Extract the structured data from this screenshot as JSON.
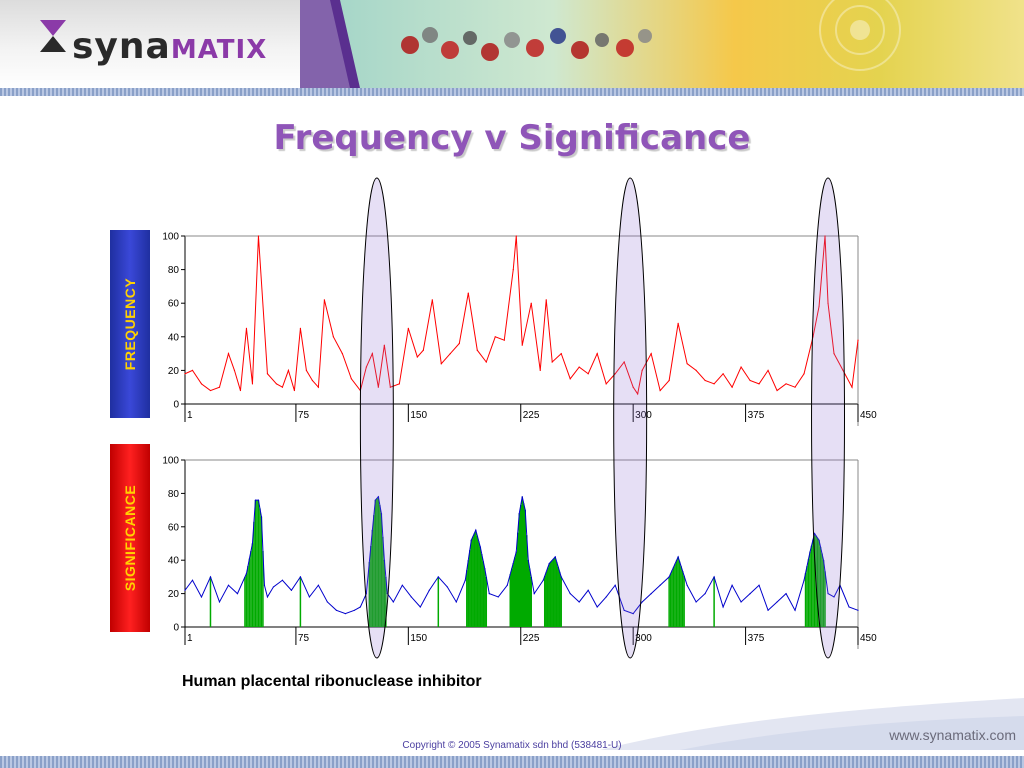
{
  "brand": {
    "logo_prefix": "syna",
    "logo_suffix": "MATIX"
  },
  "slide": {
    "title": "Frequency v Significance"
  },
  "labels": {
    "frequency": "FREQUENCY",
    "significance": "SIGNIFICANCE"
  },
  "caption": "Human placental ribonuclease inhibitor",
  "footer": {
    "copyright": "Copyright © 2005 Synamatix sdn bhd (538481-U)",
    "url": "www.synamatix.com"
  },
  "colors": {
    "freq_line": "#ff0000",
    "sig_line": "#0000cc",
    "sig_fill": "#00aa00",
    "highlight": "#8d6fd1"
  },
  "chart_data": [
    {
      "type": "line",
      "name": "frequency",
      "xlim": [
        1,
        450
      ],
      "ylim": [
        0,
        100
      ],
      "xticks": [
        1,
        75,
        150,
        225,
        300,
        375,
        450
      ],
      "yticks": [
        0,
        20,
        40,
        60,
        80,
        100
      ],
      "grid": false,
      "series": [
        {
          "x": [
            1,
            6,
            12,
            18,
            24,
            30,
            34,
            38,
            42,
            46,
            50,
            56,
            62,
            66,
            70,
            74,
            78,
            82,
            86,
            90,
            94,
            100,
            106,
            112,
            118,
            122,
            126,
            130,
            134,
            138,
            144,
            150,
            156,
            160,
            166,
            172,
            178,
            184,
            190,
            196,
            202,
            208,
            214,
            220,
            222,
            226,
            232,
            238,
            242,
            246,
            252,
            258,
            264,
            270,
            276,
            282,
            288,
            294,
            300,
            303,
            306,
            312,
            318,
            324,
            330,
            336,
            342,
            348,
            354,
            360,
            366,
            372,
            378,
            384,
            390,
            396,
            402,
            408,
            414,
            420,
            424,
            428,
            430,
            434,
            440,
            446,
            450
          ],
          "y": [
            18,
            20,
            12,
            8,
            10,
            30,
            20,
            8,
            45,
            12,
            100,
            18,
            12,
            10,
            20,
            8,
            45,
            20,
            14,
            10,
            62,
            40,
            30,
            15,
            8,
            22,
            30,
            10,
            35,
            10,
            12,
            45,
            28,
            32,
            62,
            24,
            30,
            36,
            66,
            32,
            25,
            40,
            38,
            80,
            100,
            35,
            60,
            20,
            62,
            25,
            30,
            15,
            22,
            18,
            30,
            12,
            18,
            25,
            10,
            6,
            20,
            30,
            8,
            14,
            48,
            24,
            20,
            14,
            12,
            18,
            10,
            22,
            14,
            12,
            20,
            8,
            12,
            10,
            18,
            40,
            58,
            100,
            60,
            30,
            20,
            10,
            38
          ]
        }
      ]
    },
    {
      "type": "area",
      "name": "significance",
      "xlim": [
        1,
        450
      ],
      "ylim": [
        0,
        100
      ],
      "xticks": [
        1,
        75,
        150,
        225,
        300,
        375,
        450
      ],
      "yticks": [
        0,
        20,
        40,
        60,
        80,
        100
      ],
      "grid": false,
      "series": [
        {
          "x": [
            1,
            6,
            12,
            18,
            24,
            30,
            36,
            42,
            46,
            48,
            50,
            52,
            54,
            56,
            60,
            66,
            72,
            78,
            84,
            90,
            96,
            102,
            108,
            114,
            118,
            122,
            126,
            128,
            130,
            132,
            134,
            136,
            140,
            146,
            152,
            158,
            164,
            170,
            176,
            182,
            188,
            192,
            195,
            198,
            201,
            204,
            210,
            216,
            222,
            224,
            226,
            228,
            230,
            234,
            240,
            244,
            248,
            252,
            258,
            264,
            270,
            276,
            282,
            288,
            294,
            300,
            306,
            312,
            318,
            324,
            330,
            336,
            342,
            348,
            354,
            360,
            366,
            372,
            378,
            384,
            390,
            396,
            402,
            408,
            414,
            418,
            421,
            424,
            427,
            430,
            434,
            438,
            444,
            450
          ],
          "y": [
            22,
            28,
            18,
            30,
            15,
            25,
            20,
            32,
            50,
            76,
            76,
            66,
            25,
            18,
            24,
            28,
            22,
            30,
            18,
            25,
            15,
            10,
            8,
            10,
            12,
            20,
            58,
            76,
            78,
            68,
            40,
            20,
            15,
            25,
            18,
            12,
            22,
            30,
            24,
            15,
            28,
            52,
            58,
            48,
            35,
            20,
            18,
            25,
            45,
            68,
            78,
            70,
            40,
            20,
            28,
            38,
            42,
            30,
            20,
            15,
            22,
            12,
            18,
            25,
            10,
            8,
            15,
            20,
            25,
            30,
            42,
            25,
            15,
            20,
            30,
            12,
            25,
            15,
            20,
            25,
            10,
            15,
            20,
            10,
            28,
            45,
            56,
            52,
            40,
            20,
            18,
            25,
            12,
            10
          ]
        }
      ]
    }
  ]
}
